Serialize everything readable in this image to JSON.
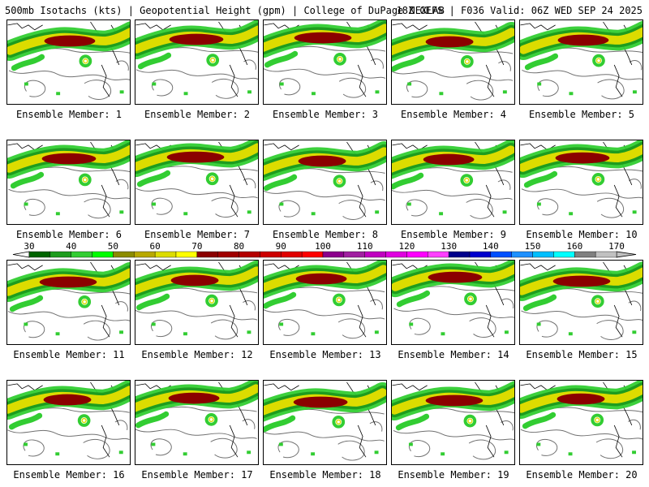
{
  "header": {
    "left": "500mb Isotachs (kts) | Geopotential Height (gpm) | College of DuPage NEXLAB",
    "right": "18Z GEFS | F036 Valid: 06Z WED SEP 24 2025"
  },
  "member_label_prefix": "Ensemble Member:",
  "members": [
    1,
    2,
    3,
    4,
    5,
    6,
    7,
    8,
    9,
    10,
    11,
    12,
    13,
    14,
    15,
    16,
    17,
    18,
    19,
    20
  ],
  "colorbar": {
    "ticks": [
      30,
      40,
      50,
      60,
      70,
      80,
      90,
      100,
      110,
      120,
      130,
      140,
      150,
      160,
      170
    ],
    "bins": [
      {
        "from": 30,
        "to": 35,
        "color": "#006400"
      },
      {
        "from": 35,
        "to": 40,
        "color": "#1e9c1e"
      },
      {
        "from": 40,
        "to": 45,
        "color": "#32cd32"
      },
      {
        "from": 45,
        "to": 50,
        "color": "#00ff00"
      },
      {
        "from": 50,
        "to": 55,
        "color": "#8b8b00"
      },
      {
        "from": 55,
        "to": 60,
        "color": "#b8a800"
      },
      {
        "from": 60,
        "to": 65,
        "color": "#dcdc00"
      },
      {
        "from": 65,
        "to": 70,
        "color": "#ffff00"
      },
      {
        "from": 70,
        "to": 75,
        "color": "#8b0000"
      },
      {
        "from": 75,
        "to": 80,
        "color": "#a00000"
      },
      {
        "from": 80,
        "to": 85,
        "color": "#b40000"
      },
      {
        "from": 85,
        "to": 90,
        "color": "#cd0000"
      },
      {
        "from": 90,
        "to": 95,
        "color": "#e00000"
      },
      {
        "from": 95,
        "to": 100,
        "color": "#ff0000"
      },
      {
        "from": 100,
        "to": 105,
        "color": "#8b008b"
      },
      {
        "from": 105,
        "to": 110,
        "color": "#a020a0"
      },
      {
        "from": 110,
        "to": 115,
        "color": "#c000c0"
      },
      {
        "from": 115,
        "to": 120,
        "color": "#e000e0"
      },
      {
        "from": 120,
        "to": 125,
        "color": "#ff00ff"
      },
      {
        "from": 125,
        "to": 130,
        "color": "#ff40ff"
      },
      {
        "from": 130,
        "to": 135,
        "color": "#00008b"
      },
      {
        "from": 135,
        "to": 140,
        "color": "#0000cd"
      },
      {
        "from": 140,
        "to": 145,
        "color": "#0050ff"
      },
      {
        "from": 145,
        "to": 150,
        "color": "#1e90ff"
      },
      {
        "from": 150,
        "to": 155,
        "color": "#00bfff"
      },
      {
        "from": 155,
        "to": 160,
        "color": "#00ffff"
      },
      {
        "from": 160,
        "to": 165,
        "color": "#808080"
      },
      {
        "from": 165,
        "to": 170,
        "color": "#c0c0c0"
      }
    ]
  },
  "colors": {
    "jet_core": "#8b0000",
    "jet_mid": "#dcdc00",
    "jet_edge": "#1e9c1e",
    "jet_outer": "#32cd32",
    "height_contour": "#707070",
    "coastline": "#000000"
  }
}
